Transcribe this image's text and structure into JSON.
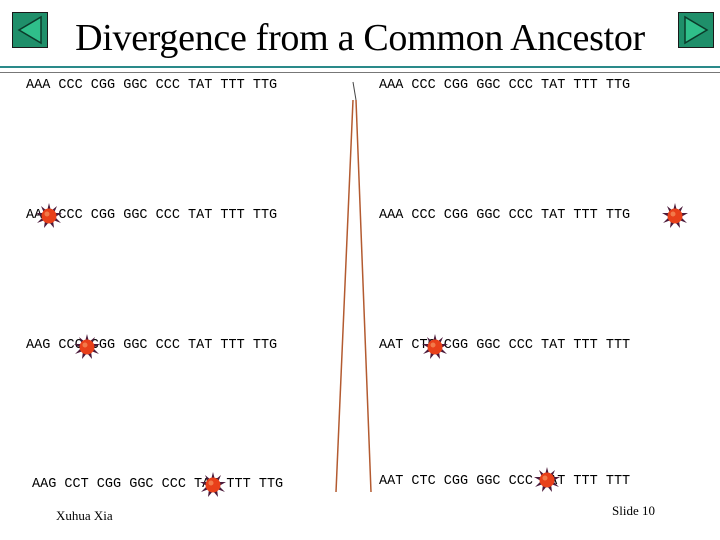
{
  "slide": {
    "title": "Divergence from a Common Ancestor",
    "author": "Xuhua Xia",
    "slide_number": "Slide 10"
  },
  "navigation": {
    "back_icon": "triangle-left-icon",
    "forward_icon": "triangle-right-icon",
    "button_color": "#1f8f6a"
  },
  "sequences": {
    "left": [
      "AAA CCC CGG GGC CCC TAT TTT TTG",
      "AAA CCC CGG GGC CCC TAT TTT TTG",
      "AAG CCC CGG GGC CCC TAT TTT TTG",
      "AAG CCT CGG GGC CCC TAT TTT TTG"
    ],
    "right": [
      "AAA CCC CGG GGC CCC TAT TTT TTG",
      "AAA CCC CGG GGC CCC TAT TTT TTG",
      "AAT CTC CGG GGC CCC TAT TTT TTT",
      "AAT CTC CGG GGC CCC TAT TTT TTT"
    ]
  },
  "mutation_marker": {
    "icon": "mutation-star-icon",
    "fill_color": "#e8401a",
    "outline_color": "#4a1a3a"
  },
  "tree_line_color": "#b35a30"
}
